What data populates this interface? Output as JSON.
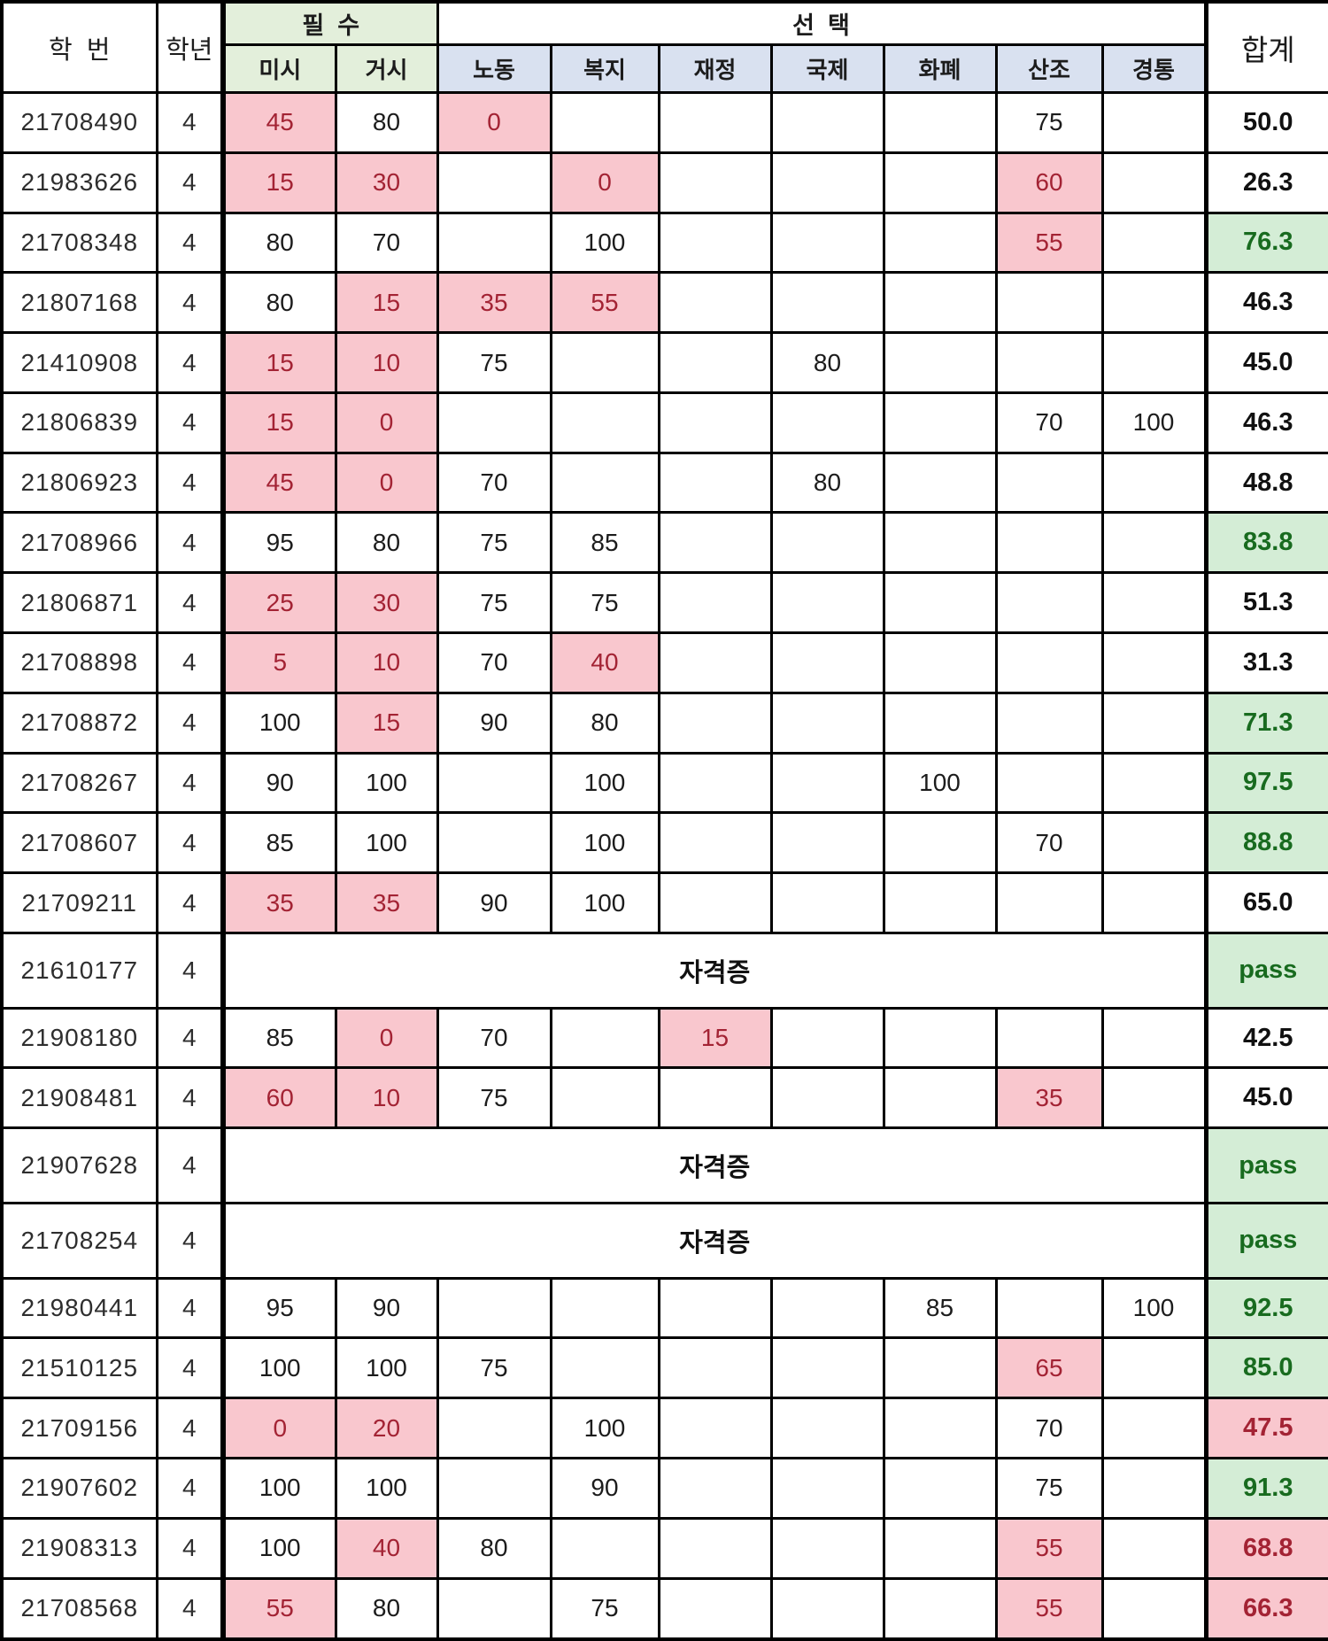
{
  "table": {
    "header": {
      "student_id": "학  번",
      "year": "학년",
      "required_group": "필  수",
      "elective_group": "선  택",
      "total": "합계",
      "required_columns": [
        "미시",
        "거시"
      ],
      "elective_columns": [
        "노동",
        "복지",
        "재정",
        "국제",
        "화폐",
        "산조",
        "경통"
      ]
    },
    "column_keys": [
      "misi",
      "geosi",
      "nodong",
      "bokji",
      "jaejeong",
      "gukje",
      "hwapye",
      "sanjo",
      "gyeongtong"
    ],
    "certificate_label": "자격증",
    "rows": [
      {
        "id": "21708490",
        "year": "4",
        "cells": [
          {
            "v": "45",
            "bad": true
          },
          {
            "v": "80"
          },
          {
            "v": "0",
            "bad": true
          },
          null,
          null,
          null,
          null,
          {
            "v": "75"
          },
          null
        ],
        "total": {
          "v": "50.0",
          "style": "plain"
        }
      },
      {
        "id": "21983626",
        "year": "4",
        "cells": [
          {
            "v": "15",
            "bad": true
          },
          {
            "v": "30",
            "bad": true
          },
          null,
          {
            "v": "0",
            "bad": true
          },
          null,
          null,
          null,
          {
            "v": "60",
            "bad": true
          },
          null
        ],
        "total": {
          "v": "26.3",
          "style": "plain"
        }
      },
      {
        "id": "21708348",
        "year": "4",
        "cells": [
          {
            "v": "80"
          },
          {
            "v": "70"
          },
          null,
          {
            "v": "100"
          },
          null,
          null,
          null,
          {
            "v": "55",
            "bad": true
          },
          null
        ],
        "total": {
          "v": "76.3",
          "style": "good"
        }
      },
      {
        "id": "21807168",
        "year": "4",
        "cells": [
          {
            "v": "80"
          },
          {
            "v": "15",
            "bad": true
          },
          {
            "v": "35",
            "bad": true
          },
          {
            "v": "55",
            "bad": true
          },
          null,
          null,
          null,
          null,
          null
        ],
        "total": {
          "v": "46.3",
          "style": "plain"
        }
      },
      {
        "id": "21410908",
        "year": "4",
        "cells": [
          {
            "v": "15",
            "bad": true
          },
          {
            "v": "10",
            "bad": true
          },
          {
            "v": "75"
          },
          null,
          null,
          {
            "v": "80"
          },
          null,
          null,
          null
        ],
        "total": {
          "v": "45.0",
          "style": "plain"
        }
      },
      {
        "id": "21806839",
        "year": "4",
        "cells": [
          {
            "v": "15",
            "bad": true
          },
          {
            "v": "0",
            "bad": true
          },
          null,
          null,
          null,
          null,
          null,
          {
            "v": "70"
          },
          {
            "v": "100"
          }
        ],
        "total": {
          "v": "46.3",
          "style": "plain"
        }
      },
      {
        "id": "21806923",
        "year": "4",
        "cells": [
          {
            "v": "45",
            "bad": true
          },
          {
            "v": "0",
            "bad": true
          },
          {
            "v": "70"
          },
          null,
          null,
          {
            "v": "80"
          },
          null,
          null,
          null
        ],
        "total": {
          "v": "48.8",
          "style": "plain"
        }
      },
      {
        "id": "21708966",
        "year": "4",
        "cells": [
          {
            "v": "95"
          },
          {
            "v": "80"
          },
          {
            "v": "75"
          },
          {
            "v": "85"
          },
          null,
          null,
          null,
          null,
          null
        ],
        "total": {
          "v": "83.8",
          "style": "good"
        }
      },
      {
        "id": "21806871",
        "year": "4",
        "cells": [
          {
            "v": "25",
            "bad": true
          },
          {
            "v": "30",
            "bad": true
          },
          {
            "v": "75"
          },
          {
            "v": "75"
          },
          null,
          null,
          null,
          null,
          null
        ],
        "total": {
          "v": "51.3",
          "style": "plain"
        }
      },
      {
        "id": "21708898",
        "year": "4",
        "cells": [
          {
            "v": "5",
            "bad": true
          },
          {
            "v": "10",
            "bad": true
          },
          {
            "v": "70"
          },
          {
            "v": "40",
            "bad": true
          },
          null,
          null,
          null,
          null,
          null
        ],
        "total": {
          "v": "31.3",
          "style": "plain"
        }
      },
      {
        "id": "21708872",
        "year": "4",
        "cells": [
          {
            "v": "100"
          },
          {
            "v": "15",
            "bad": true
          },
          {
            "v": "90"
          },
          {
            "v": "80"
          },
          null,
          null,
          null,
          null,
          null
        ],
        "total": {
          "v": "71.3",
          "style": "good"
        }
      },
      {
        "id": "21708267",
        "year": "4",
        "cells": [
          {
            "v": "90"
          },
          {
            "v": "100"
          },
          null,
          {
            "v": "100"
          },
          null,
          null,
          {
            "v": "100"
          },
          null,
          null
        ],
        "total": {
          "v": "97.5",
          "style": "good"
        }
      },
      {
        "id": "21708607",
        "year": "4",
        "cells": [
          {
            "v": "85"
          },
          {
            "v": "100"
          },
          null,
          {
            "v": "100"
          },
          null,
          null,
          null,
          {
            "v": "70"
          },
          null
        ],
        "total": {
          "v": "88.8",
          "style": "good"
        }
      },
      {
        "id": "21709211",
        "year": "4",
        "cells": [
          {
            "v": "35",
            "bad": true
          },
          {
            "v": "35",
            "bad": true
          },
          {
            "v": "90"
          },
          {
            "v": "100"
          },
          null,
          null,
          null,
          null,
          null
        ],
        "total": {
          "v": "65.0",
          "style": "plain"
        }
      },
      {
        "id": "21610177",
        "year": "4",
        "cert": true,
        "total": {
          "v": "pass",
          "style": "good"
        }
      },
      {
        "id": "21908180",
        "year": "4",
        "cells": [
          {
            "v": "85"
          },
          {
            "v": "0",
            "bad": true
          },
          {
            "v": "70"
          },
          null,
          {
            "v": "15",
            "bad": true
          },
          null,
          null,
          null,
          null
        ],
        "total": {
          "v": "42.5",
          "style": "plain"
        }
      },
      {
        "id": "21908481",
        "year": "4",
        "cells": [
          {
            "v": "60",
            "bad": true
          },
          {
            "v": "10",
            "bad": true
          },
          {
            "v": "75"
          },
          null,
          null,
          null,
          null,
          {
            "v": "35",
            "bad": true
          },
          null
        ],
        "total": {
          "v": "45.0",
          "style": "plain"
        }
      },
      {
        "id": "21907628",
        "year": "4",
        "cert": true,
        "total": {
          "v": "pass",
          "style": "good"
        }
      },
      {
        "id": "21708254",
        "year": "4",
        "cert": true,
        "total": {
          "v": "pass",
          "style": "good"
        }
      },
      {
        "id": "21980441",
        "year": "4",
        "cells": [
          {
            "v": "95"
          },
          {
            "v": "90"
          },
          null,
          null,
          null,
          null,
          {
            "v": "85"
          },
          null,
          {
            "v": "100"
          }
        ],
        "total": {
          "v": "92.5",
          "style": "good"
        }
      },
      {
        "id": "21510125",
        "year": "4",
        "cells": [
          {
            "v": "100"
          },
          {
            "v": "100"
          },
          {
            "v": "75"
          },
          null,
          null,
          null,
          null,
          {
            "v": "65",
            "bad": true
          },
          null
        ],
        "total": {
          "v": "85.0",
          "style": "good"
        }
      },
      {
        "id": "21709156",
        "year": "4",
        "cells": [
          {
            "v": "0",
            "bad": true
          },
          {
            "v": "20",
            "bad": true
          },
          null,
          {
            "v": "100"
          },
          null,
          null,
          null,
          {
            "v": "70"
          },
          null
        ],
        "total": {
          "v": "47.5",
          "style": "bad"
        }
      },
      {
        "id": "21907602",
        "year": "4",
        "cells": [
          {
            "v": "100"
          },
          {
            "v": "100"
          },
          null,
          {
            "v": "90"
          },
          null,
          null,
          null,
          {
            "v": "75"
          },
          null
        ],
        "total": {
          "v": "91.3",
          "style": "good"
        }
      },
      {
        "id": "21908313",
        "year": "4",
        "cells": [
          {
            "v": "100"
          },
          {
            "v": "40",
            "bad": true
          },
          {
            "v": "80"
          },
          null,
          null,
          null,
          null,
          {
            "v": "55",
            "bad": true
          },
          null
        ],
        "total": {
          "v": "68.8",
          "style": "bad"
        }
      },
      {
        "id": "21708568",
        "year": "4",
        "cells": [
          {
            "v": "55",
            "bad": true
          },
          {
            "v": "80"
          },
          null,
          {
            "v": "75"
          },
          null,
          null,
          null,
          {
            "v": "55",
            "bad": true
          },
          null
        ],
        "total": {
          "v": "66.3",
          "style": "bad"
        }
      }
    ]
  },
  "colors": {
    "border": "#000000",
    "header_green": "#e3efdb",
    "header_blue": "#d9e1f0",
    "bad_bg": "#f9c7ce",
    "bad_text": "#a32334",
    "good_bg": "#d4edd6",
    "good_text": "#186b1f"
  }
}
